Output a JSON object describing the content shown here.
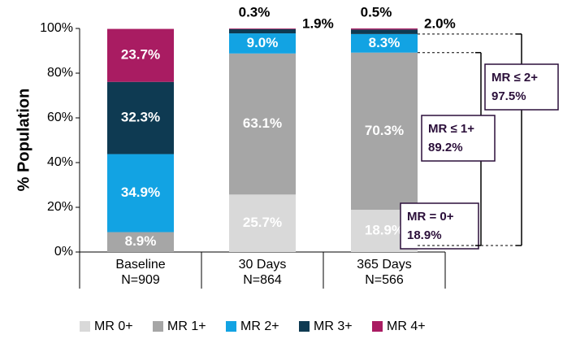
{
  "chart_data": {
    "type": "stacked-bar",
    "y_label": "% Population",
    "categories": [
      "Baseline",
      "30 Days",
      "365 Days"
    ],
    "category_counts": [
      "N=909",
      "N=864",
      "N=566"
    ],
    "ylim": [
      0,
      100
    ],
    "yticks": [
      {
        "value": 0,
        "label": "0%"
      },
      {
        "value": 20,
        "label": "20%"
      },
      {
        "value": 40,
        "label": "40%"
      },
      {
        "value": 60,
        "label": "60%"
      },
      {
        "value": 80,
        "label": "80%"
      },
      {
        "value": 100,
        "label": "100%"
      }
    ],
    "series": [
      {
        "name": "MR 0+",
        "color": "#d9d9d9",
        "values": [
          0,
          25.7,
          18.9
        ],
        "value_labels": [
          null,
          "25.7%",
          "18.9%"
        ]
      },
      {
        "name": "MR 1+",
        "color": "#a6a6a6",
        "values": [
          8.9,
          63.1,
          70.3
        ],
        "value_labels": [
          "8.9%",
          "63.1%",
          "70.3%"
        ]
      },
      {
        "name": "MR 2+",
        "color": "#12a3e3",
        "values": [
          34.9,
          9.0,
          8.3
        ],
        "value_labels": [
          "34.9%",
          "9.0%",
          "8.3%"
        ]
      },
      {
        "name": "MR 3+",
        "color": "#0e3a52",
        "values": [
          32.3,
          1.9,
          2.0
        ],
        "value_labels": [
          "32.3%",
          "1.9%",
          "2.0%"
        ]
      },
      {
        "name": "MR 4+",
        "color": "#a91c62",
        "values": [
          23.7,
          0.3,
          0.5
        ],
        "value_labels": [
          "23.7%",
          "0.3%",
          "0.5%"
        ]
      }
    ],
    "annotations": [
      {
        "label": "MR = 0+",
        "value": 18.9,
        "value_label": "18.9%"
      },
      {
        "label": "MR ≤ 1+",
        "value": 89.2,
        "value_label": "89.2%"
      },
      {
        "label": "MR ≤ 2+",
        "value": 97.5,
        "value_label": "97.5%"
      }
    ],
    "legend": "bottom"
  }
}
